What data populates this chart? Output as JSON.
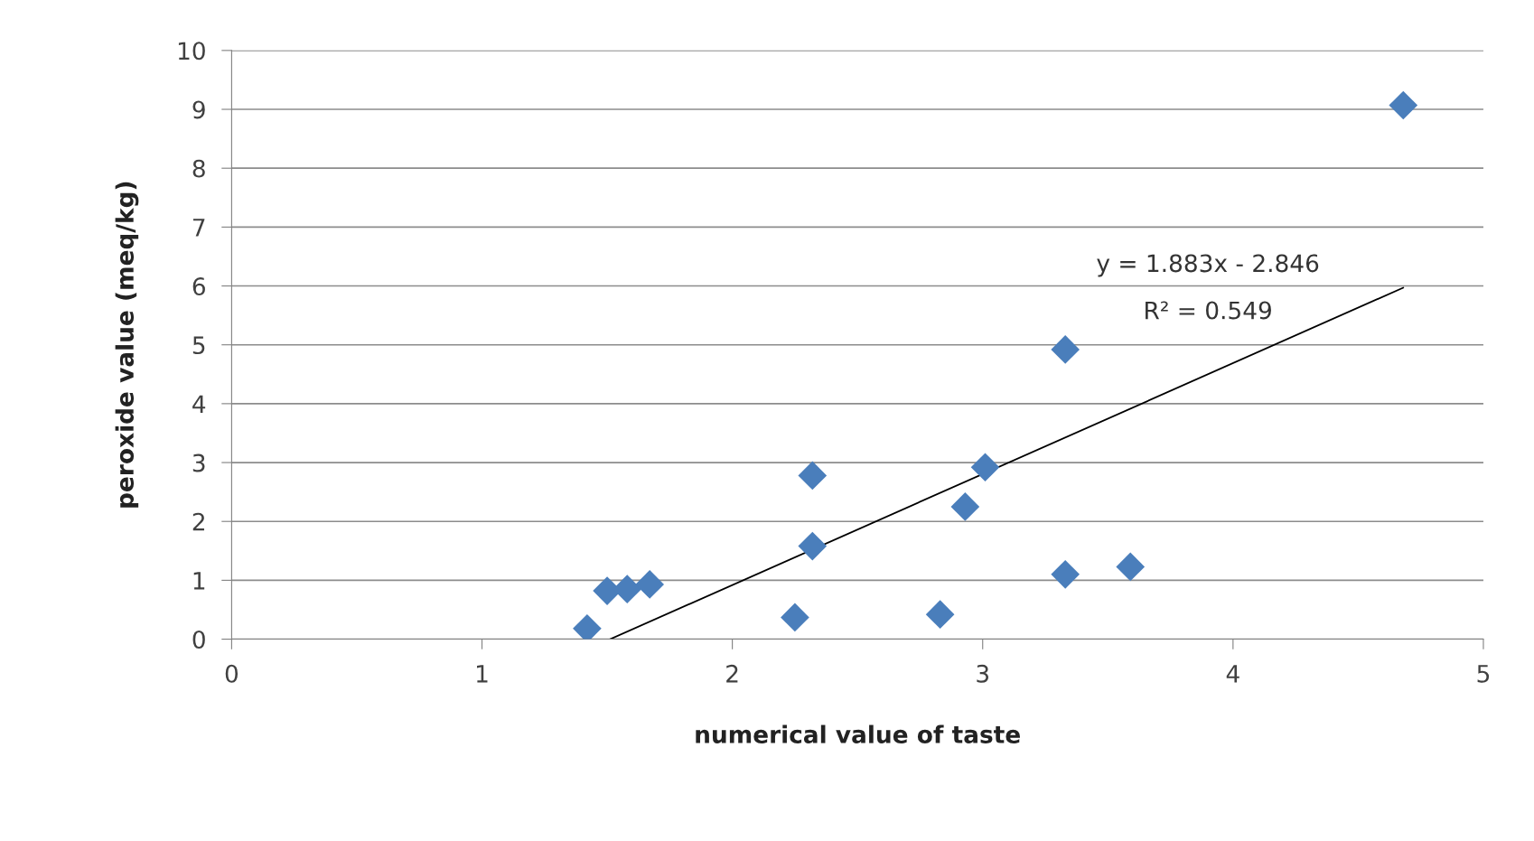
{
  "chart_data": {
    "type": "scatter",
    "xlabel": "numerical value of taste",
    "ylabel": "peroxide value (meq/kg)",
    "series": [
      {
        "color": "#4a7ebb",
        "marker": "diamond",
        "x": [
          1.42,
          1.5,
          1.58,
          1.67,
          2.25,
          2.32,
          2.32,
          2.83,
          2.93,
          3.01,
          3.33,
          3.33,
          3.59,
          4.68
        ],
        "values": [
          0.18,
          0.82,
          0.85,
          0.93,
          0.37,
          2.78,
          1.58,
          0.42,
          2.25,
          2.92,
          4.92,
          1.1,
          1.23,
          9.07
        ]
      },
      {
        "type": "line",
        "color": "#000000",
        "marker": "none",
        "x": [
          1.512,
          4.68
        ],
        "values": [
          0,
          5.97
        ]
      }
    ],
    "annotations": [
      "y = 1.883x - 2.846",
      "R² = 0.549"
    ],
    "xlim": [
      0,
      5
    ],
    "xticks": [
      0,
      1,
      2,
      3,
      4,
      5
    ],
    "ylim": [
      0,
      10
    ],
    "yticks": [
      0,
      1,
      2,
      3,
      4,
      5,
      6,
      7,
      8,
      9,
      10
    ],
    "grid": "y",
    "legend": false
  }
}
